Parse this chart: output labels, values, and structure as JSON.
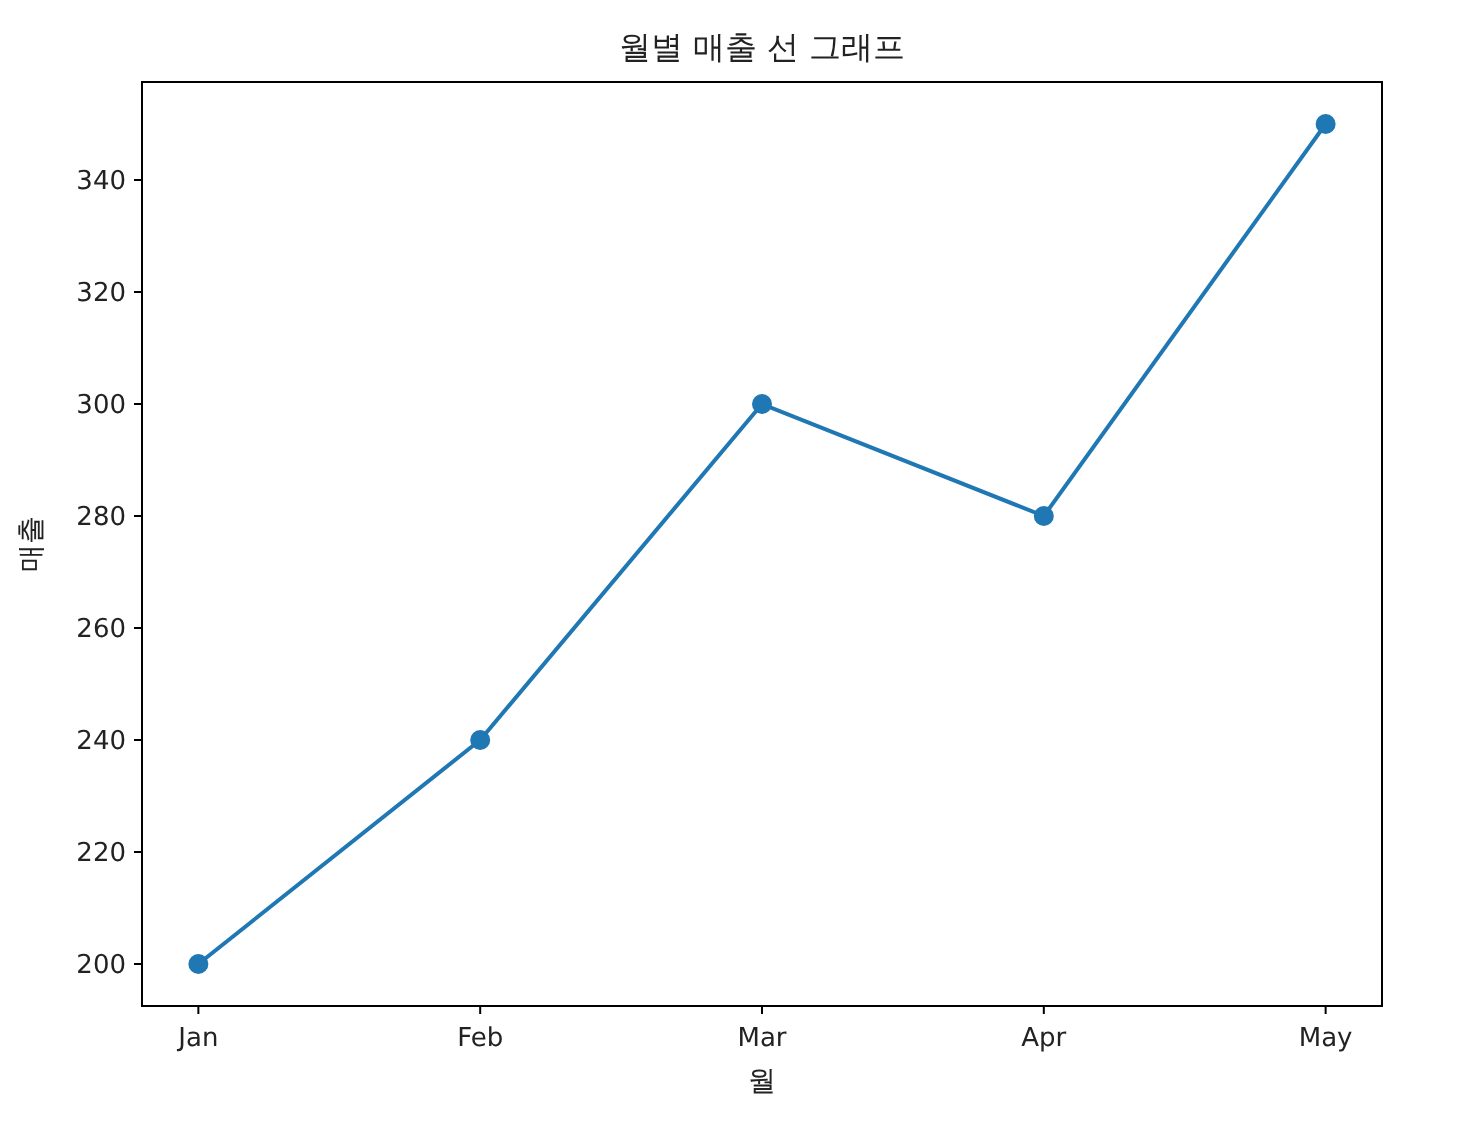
{
  "chart_data": {
    "type": "line",
    "title": "월별 매출 선 그래프",
    "xlabel": "월",
    "ylabel": "매출",
    "categories": [
      "Jan",
      "Feb",
      "Mar",
      "Apr",
      "May"
    ],
    "series": [
      {
        "color": "#1f77b4",
        "values": [
          200,
          240,
          300,
          280,
          350
        ]
      }
    ],
    "ylim": [
      192.5,
      357.5
    ],
    "yticks": [
      200,
      220,
      240,
      260,
      280,
      300,
      320,
      340
    ],
    "marker": "circle",
    "line_style": "solid",
    "grid": false
  }
}
